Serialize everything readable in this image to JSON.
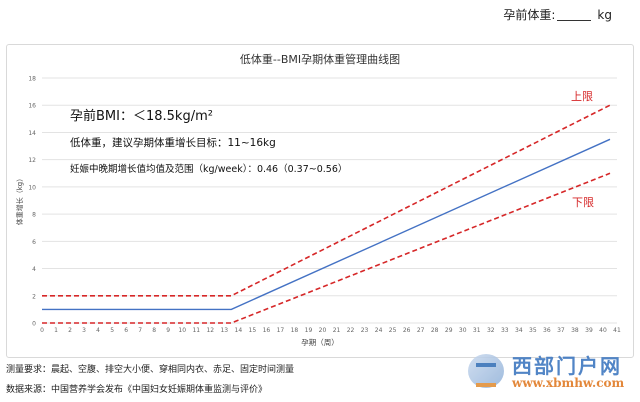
{
  "header": {
    "weight_label": "孕前体重:",
    "weight_unit": "kg"
  },
  "chart_data": {
    "type": "line",
    "title": "低体重--BMI孕期体重管理曲线图",
    "xlabel": "孕期（周）",
    "ylabel": "体重增长（kg）",
    "xlim": [
      0,
      41
    ],
    "ylim": [
      0,
      18
    ],
    "xticks": [
      0,
      1,
      2,
      3,
      4,
      5,
      6,
      7,
      8,
      9,
      10,
      11,
      12,
      13,
      14,
      15,
      16,
      17,
      18,
      19,
      20,
      21,
      22,
      23,
      24,
      25,
      26,
      27,
      28,
      29,
      30,
      31,
      32,
      33,
      34,
      35,
      36,
      37,
      38,
      39,
      40,
      41
    ],
    "yticks": [
      0,
      2,
      4,
      6,
      8,
      10,
      12,
      14,
      16,
      18
    ],
    "grid": "horizontal",
    "series": [
      {
        "name": "上限",
        "style": "dashed",
        "color": "#d62728",
        "x": [
          0,
          13.5,
          40.5
        ],
        "y": [
          2.0,
          2.0,
          16.0
        ]
      },
      {
        "name": "",
        "style": "solid",
        "color": "#4472c4",
        "x": [
          0,
          13.5,
          40.5
        ],
        "y": [
          1.0,
          1.0,
          13.5
        ]
      },
      {
        "name": "下限",
        "style": "dashed",
        "color": "#d62728",
        "x": [
          0,
          13.5,
          40.5
        ],
        "y": [
          0.0,
          0.0,
          11.0
        ]
      }
    ],
    "annotations": {
      "bmi": "孕前BMI：＜18.5kg/m²",
      "target": "低体重，建议孕期体重增长目标：11~16kg",
      "rate": "妊娠中晚期增长值均值及范围（kg/week）：0.46（0.37~0.56）",
      "upper": "上限",
      "lower": "下限"
    }
  },
  "footer": {
    "note": "测量要求：晨起、空腹、排空大小便、穿相同内衣、赤足、固定时间测量",
    "source": "数据来源：中国营养学会发布《中国妇女妊娠期体重监测与评价》"
  },
  "watermark": {
    "title": "西部门户网",
    "url": "www.xbmhw.com"
  },
  "colors": {
    "limit": "#d62728",
    "median": "#4472c4",
    "grid": "#e3e3e3",
    "axis_text": "#666666"
  }
}
